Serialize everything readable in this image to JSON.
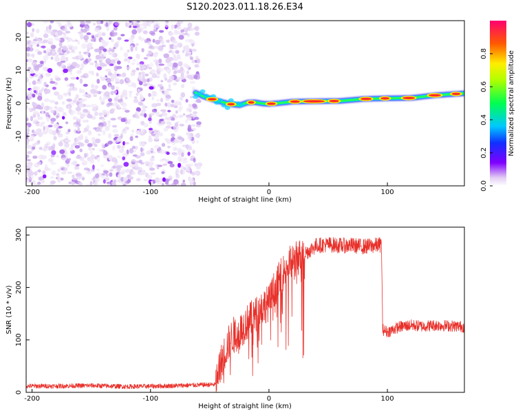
{
  "figure_title": "S120.2023.011.18.26.E34",
  "chart_data": [
    {
      "type": "heatmap",
      "title": "",
      "xlabel": "Height of straight line (km)",
      "ylabel": "Frequency (Hz)",
      "xlim": [
        -205,
        165
      ],
      "ylim": [
        -25,
        25
      ],
      "xticks": [
        -200,
        -100,
        0,
        100
      ],
      "yticks": [
        -20,
        -10,
        0,
        10,
        20
      ],
      "noise_region": {
        "x": [
          -205,
          -60
        ],
        "y": [
          -25,
          25
        ]
      },
      "ridge": {
        "x": [
          -62,
          -55,
          -48,
          -40,
          -32,
          -25,
          -18,
          -12,
          -5,
          0,
          10,
          20,
          40,
          60,
          80,
          100,
          120,
          140,
          165
        ],
        "y": [
          3.2,
          2.0,
          1.2,
          0.4,
          -0.3,
          -0.6,
          0.2,
          0.3,
          -0.1,
          -0.2,
          0.1,
          0.5,
          0.6,
          0.7,
          1.3,
          1.5,
          1.6,
          2.4,
          3.0
        ]
      },
      "colorbar": {
        "label": "Normalized spectral amplitude",
        "range": [
          0,
          1
        ],
        "ticks": [
          0.0,
          0.2,
          0.4,
          0.6,
          0.8
        ]
      },
      "grid": false
    },
    {
      "type": "line",
      "title": "",
      "xlabel": "Height of straight line (km)",
      "ylabel": "SNR (10 * v/v)",
      "xlim": [
        -205,
        165
      ],
      "ylim": [
        0,
        315
      ],
      "xticks": [
        -200,
        -100,
        0,
        100
      ],
      "yticks": [
        0,
        100,
        200,
        300
      ],
      "series": [
        {
          "color": "#e8302a",
          "x": [
            -205,
            -180,
            -150,
            -120,
            -90,
            -60,
            -45,
            -40,
            -35,
            -30,
            -25,
            -20,
            -15,
            -10,
            -5,
            0,
            5,
            10,
            15,
            20,
            25,
            30,
            35,
            40,
            50,
            60,
            70,
            80,
            90,
            95,
            96,
            100,
            110,
            120,
            130,
            140,
            150,
            160,
            165
          ],
          "y": [
            12,
            12,
            13,
            11,
            12,
            14,
            15,
            60,
            90,
            110,
            115,
            130,
            140,
            150,
            165,
            170,
            200,
            220,
            240,
            250,
            258,
            265,
            272,
            280,
            282,
            280,
            280,
            278,
            280,
            282,
            120,
            115,
            125,
            128,
            126,
            128,
            127,
            126,
            125
          ]
        }
      ],
      "grid": false
    }
  ]
}
